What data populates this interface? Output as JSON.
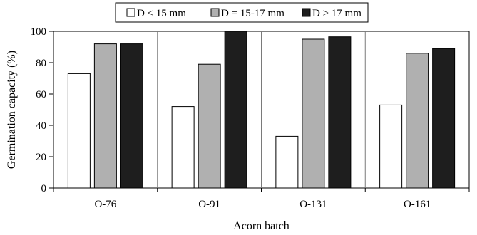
{
  "chart_data": {
    "type": "bar",
    "xlabel": "Acorn batch",
    "ylabel": "Germination capacity (%)",
    "ylim": [
      0,
      100
    ],
    "yticks": [
      0,
      20,
      40,
      60,
      80,
      100
    ],
    "categories": [
      "O-76",
      "O-91",
      "O-131",
      "O-161"
    ],
    "series": [
      {
        "name": "D < 15 mm",
        "color": "#ffffff",
        "values": [
          73,
          52,
          33,
          53
        ]
      },
      {
        "name": "D = 15-17 mm",
        "color": "#b0b0b0",
        "values": [
          92,
          79,
          95,
          86
        ]
      },
      {
        "name": "D > 17 mm",
        "color": "#1e1e1e",
        "values": [
          92,
          100,
          96.5,
          89
        ]
      }
    ],
    "grid": {
      "vertical": true,
      "horizontal": false
    },
    "legend": "top"
  }
}
